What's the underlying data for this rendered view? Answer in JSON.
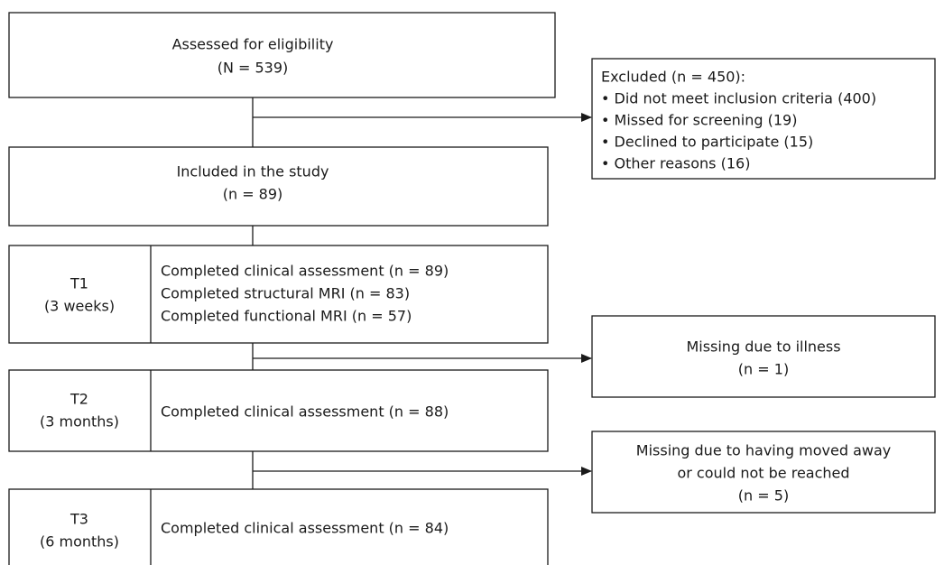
{
  "nodes": {
    "assessed": {
      "title": "Assessed for eligibility",
      "count": "(N = 539)"
    },
    "excluded": {
      "title": "Excluded (n = 450):",
      "items": [
        "• Did not meet inclusion criteria (400)",
        "• Missed for screening (19)",
        "• Declined to participate (15)",
        "• Other reasons (16)"
      ]
    },
    "included": {
      "title": "Included in the study",
      "count": "(n = 89)"
    },
    "t1": {
      "label": "T1",
      "period": "(3 weeks)",
      "lines": [
        "Completed clinical assessment (n = 89)",
        "Completed structural MRI (n = 83)",
        "Completed functional MRI (n = 57)"
      ]
    },
    "missing1": {
      "lines": [
        "Missing due to illness",
        "(n = 1)"
      ]
    },
    "t2": {
      "label": "T2",
      "period": "(3 months)",
      "lines": [
        "Completed clinical assessment (n = 88)"
      ]
    },
    "missing2": {
      "lines": [
        "Missing due to having moved away",
        "or could not be reached",
        "(n = 5)"
      ]
    },
    "t3": {
      "label": "T3",
      "period": "(6 months)",
      "lines": [
        "Completed clinical assessment (n = 84)"
      ]
    }
  }
}
